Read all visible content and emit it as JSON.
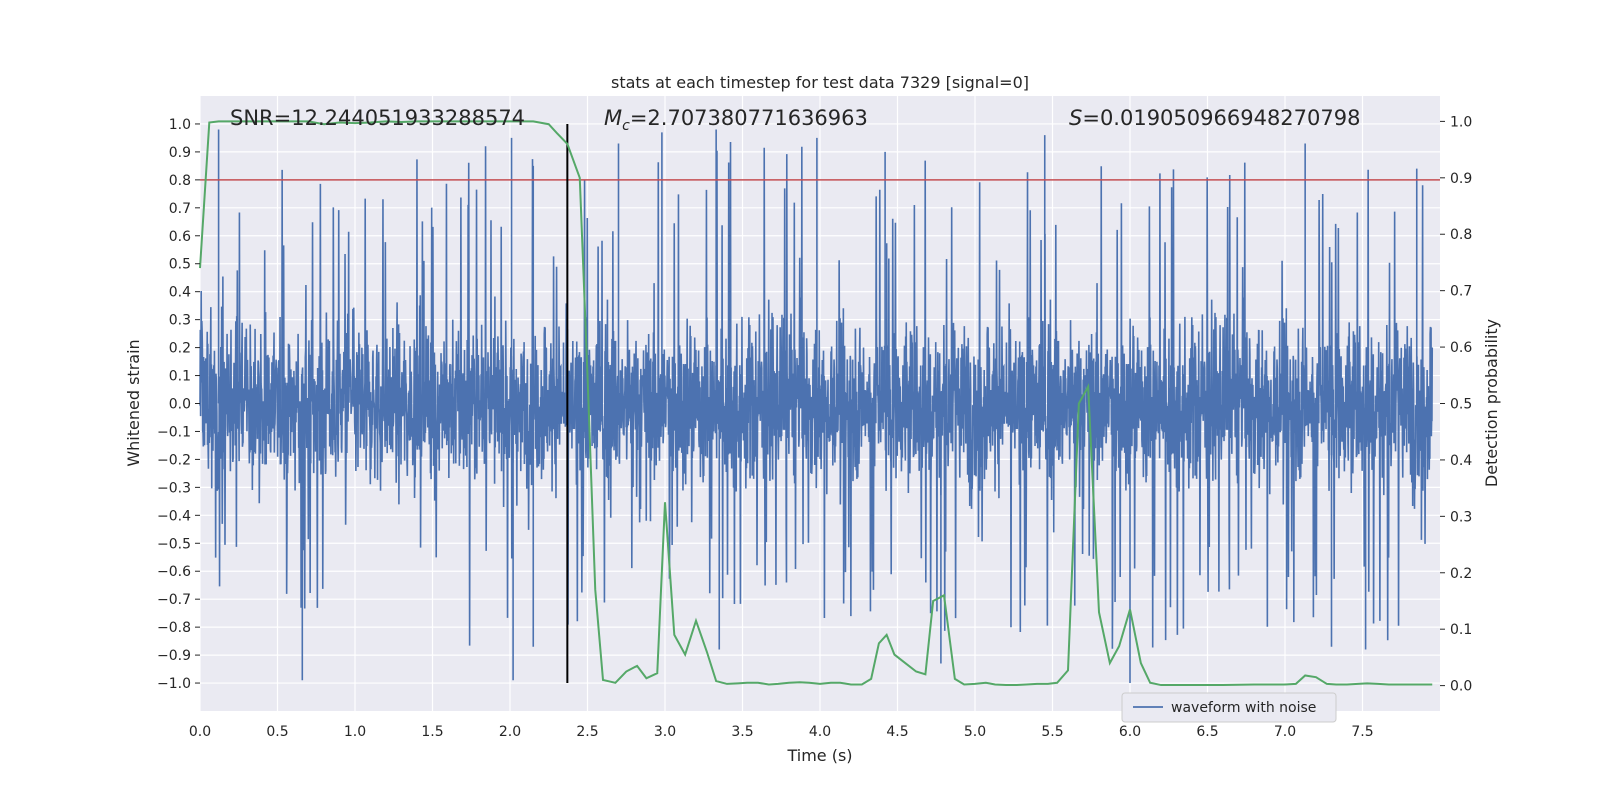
{
  "chart_data": {
    "type": "line",
    "title": "stats at each timestep for test data 7329 [signal=0]",
    "xlabel": "Time (s)",
    "ylabel": "Whitened strain",
    "y2label": "Detection probability",
    "xlim": [
      0.0,
      8.0
    ],
    "ylim": [
      -1.1,
      1.1
    ],
    "y2lim": [
      -0.045,
      1.045
    ],
    "x_ticks": [
      "0.0",
      "0.5",
      "1.0",
      "1.5",
      "2.0",
      "2.5",
      "3.0",
      "3.5",
      "4.0",
      "4.5",
      "5.0",
      "5.5",
      "6.0",
      "6.5",
      "7.0",
      "7.5"
    ],
    "y_ticks": [
      "1.0",
      "0.9",
      "0.8",
      "0.7",
      "0.6",
      "0.5",
      "0.4",
      "0.3",
      "0.2",
      "0.1",
      "0.0",
      "−0.1",
      "−0.2",
      "−0.3",
      "−0.4",
      "−0.5",
      "−0.6",
      "−0.7",
      "−0.8",
      "−0.9",
      "−1.0"
    ],
    "y2_ticks": [
      "1.0",
      "0.9",
      "0.8",
      "0.7",
      "0.6",
      "0.5",
      "0.4",
      "0.3",
      "0.2",
      "0.1",
      "0.0"
    ],
    "grid": true,
    "legend": {
      "position": "lower-right",
      "entries": [
        "waveform with noise"
      ]
    },
    "annotations": {
      "snr": "SNR=12.244051933288574",
      "mc_symbol": "M",
      "mc_sub": "c",
      "mc_value": "=2.707380771636963",
      "s_symbol": "S",
      "s_value": "=0.019050966948270798"
    },
    "threshold_line": {
      "axis": "y",
      "value": 0.8,
      "color": "#c44e52"
    },
    "marker_line": {
      "x": 2.37,
      "ymin": -1.0,
      "ymax": 1.0,
      "color": "#000000"
    },
    "series": [
      {
        "name": "waveform with noise",
        "axis": "y",
        "color": "#4c72b0",
        "sample_count": 4096,
        "envelope": {
          "x": [
            0.0,
            0.5,
            1.0,
            1.5,
            2.0,
            2.5,
            3.0,
            3.5,
            4.0,
            4.5,
            5.0,
            5.5,
            6.0,
            6.5,
            7.0,
            7.5,
            7.95
          ],
          "max": [
            0.4,
            0.98,
            0.93,
            0.9,
            0.94,
            0.85,
            0.9,
            0.97,
            0.94,
            0.9,
            0.85,
            0.9,
            0.87,
            0.85,
            0.93,
            0.85,
            0.84
          ],
          "min": [
            -0.75,
            -0.75,
            -0.72,
            -0.84,
            -0.99,
            -0.75,
            -0.68,
            -0.77,
            -0.78,
            -0.84,
            -0.82,
            -0.82,
            -1.0,
            -0.8,
            -0.82,
            -0.88,
            -0.83
          ]
        },
        "peaks": [
          {
            "x": 0.12,
            "y": 0.98
          },
          {
            "x": 2.01,
            "y": 0.95
          },
          {
            "x": 2.15,
            "y": 0.85
          },
          {
            "x": 2.7,
            "y": 0.93
          },
          {
            "x": 2.98,
            "y": 0.97
          },
          {
            "x": 3.33,
            "y": 0.98
          },
          {
            "x": 3.98,
            "y": 0.95
          },
          {
            "x": 4.42,
            "y": 0.9
          },
          {
            "x": 5.45,
            "y": 0.96
          },
          {
            "x": 7.13,
            "y": 0.93
          },
          {
            "x": 7.85,
            "y": 0.84
          },
          {
            "x": 0.66,
            "y": -0.99
          },
          {
            "x": 2.02,
            "y": -0.99
          },
          {
            "x": 2.15,
            "y": -0.87
          },
          {
            "x": 3.35,
            "y": -0.88
          },
          {
            "x": 4.78,
            "y": -0.93
          },
          {
            "x": 6.0,
            "y": -1.0
          },
          {
            "x": 7.3,
            "y": -0.87
          },
          {
            "x": 7.52,
            "y": -0.88
          }
        ]
      },
      {
        "name": "",
        "axis": "y2",
        "color": "#55a868",
        "x": [
          0.0,
          0.06,
          0.12,
          0.2,
          0.3,
          0.4,
          0.5,
          0.6,
          0.7,
          0.8,
          0.9,
          1.0,
          1.1,
          1.2,
          1.3,
          1.4,
          1.5,
          1.6,
          1.7,
          1.8,
          1.9,
          2.0,
          2.1,
          2.15,
          2.25,
          2.3,
          2.37,
          2.45,
          2.5,
          2.55,
          2.6,
          2.68,
          2.75,
          2.82,
          2.88,
          2.95,
          3.0,
          3.06,
          3.13,
          3.2,
          3.27,
          3.33,
          3.4,
          3.47,
          3.53,
          3.6,
          3.67,
          3.73,
          3.8,
          3.87,
          3.93,
          4.0,
          4.07,
          4.13,
          4.2,
          4.27,
          4.33,
          4.38,
          4.43,
          4.48,
          4.55,
          4.62,
          4.68,
          4.73,
          4.8,
          4.87,
          4.93,
          5.0,
          5.07,
          5.13,
          5.2,
          5.27,
          5.33,
          5.4,
          5.47,
          5.53,
          5.6,
          5.67,
          5.73,
          5.8,
          5.87,
          5.93,
          6.0,
          6.07,
          6.13,
          6.2,
          6.4,
          6.6,
          6.8,
          7.0,
          7.07,
          7.13,
          7.2,
          7.27,
          7.33,
          7.4,
          7.47,
          7.53,
          7.6,
          7.67,
          7.73,
          7.8,
          7.87,
          7.95
        ],
        "y": [
          0.74,
          0.998,
          1.0,
          1.0,
          1.0,
          1.0,
          1.0,
          1.0,
          1.0,
          0.995,
          0.998,
          0.997,
          0.998,
          1.0,
          0.999,
          1.0,
          1.0,
          1.0,
          1.0,
          1.0,
          1.0,
          1.0,
          1.0,
          1.0,
          0.995,
          0.98,
          0.96,
          0.9,
          0.55,
          0.17,
          0.01,
          0.005,
          0.025,
          0.035,
          0.013,
          0.022,
          0.325,
          0.09,
          0.055,
          0.115,
          0.06,
          0.008,
          0.003,
          0.004,
          0.005,
          0.005,
          0.002,
          0.003,
          0.005,
          0.006,
          0.005,
          0.003,
          0.005,
          0.005,
          0.002,
          0.002,
          0.012,
          0.075,
          0.09,
          0.055,
          0.04,
          0.025,
          0.02,
          0.15,
          0.16,
          0.012,
          0.002,
          0.003,
          0.005,
          0.002,
          0.001,
          0.001,
          0.002,
          0.003,
          0.003,
          0.005,
          0.027,
          0.5,
          0.53,
          0.13,
          0.04,
          0.07,
          0.135,
          0.04,
          0.005,
          0.001,
          0.001,
          0.001,
          0.002,
          0.002,
          0.003,
          0.018,
          0.015,
          0.003,
          0.002,
          0.002,
          0.003,
          0.004,
          0.003,
          0.002,
          0.002,
          0.002,
          0.002,
          0.002
        ]
      }
    ]
  }
}
